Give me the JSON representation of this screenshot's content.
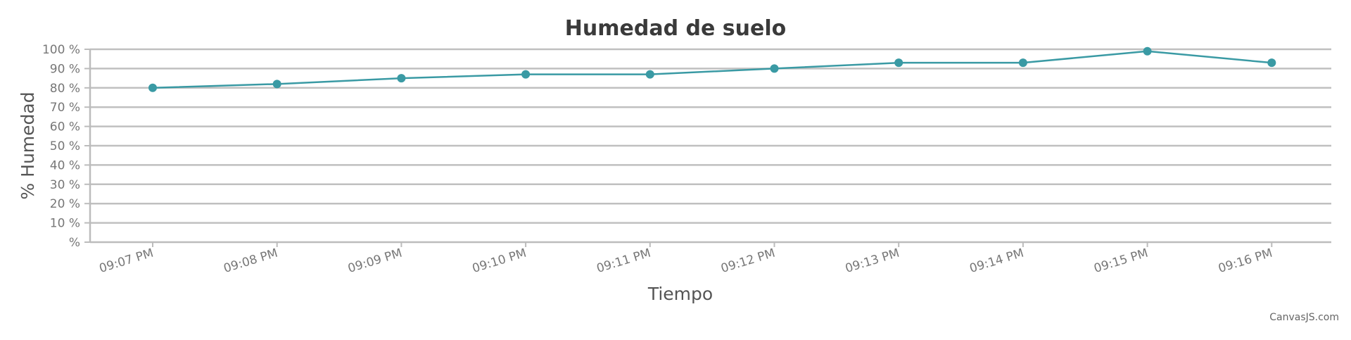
{
  "chart_data": {
    "type": "line",
    "title": "Humedad de suelo",
    "xlabel": "Tiempo",
    "ylabel": "% Humedad",
    "x": [
      "09:07 PM",
      "09:08 PM",
      "09:09 PM",
      "09:10 PM",
      "09:11 PM",
      "09:12 PM",
      "09:13 PM",
      "09:14 PM",
      "09:15 PM",
      "09:16 PM"
    ],
    "series": [
      {
        "values": [
          80,
          82,
          85,
          87,
          87,
          90,
          93,
          93,
          99,
          93
        ]
      }
    ],
    "ylim": [
      0,
      100
    ],
    "yticks": [
      {
        "value": 0,
        "label": "%"
      },
      {
        "value": 10,
        "label": "10 %"
      },
      {
        "value": 20,
        "label": "20 %"
      },
      {
        "value": 30,
        "label": "30 %"
      },
      {
        "value": 40,
        "label": "40 %"
      },
      {
        "value": 50,
        "label": "50 %"
      },
      {
        "value": 60,
        "label": "60 %"
      },
      {
        "value": 70,
        "label": "70 %"
      },
      {
        "value": 80,
        "label": "80 %"
      },
      {
        "value": 90,
        "label": "90 %"
      },
      {
        "value": 100,
        "label": "100 %"
      }
    ],
    "grid": true,
    "legend": false,
    "colors": {
      "line": "#3a9aa4",
      "grid": "#c0c0c0",
      "axis": "#bcbcbc"
    }
  },
  "credit": "CanvasJS.com"
}
